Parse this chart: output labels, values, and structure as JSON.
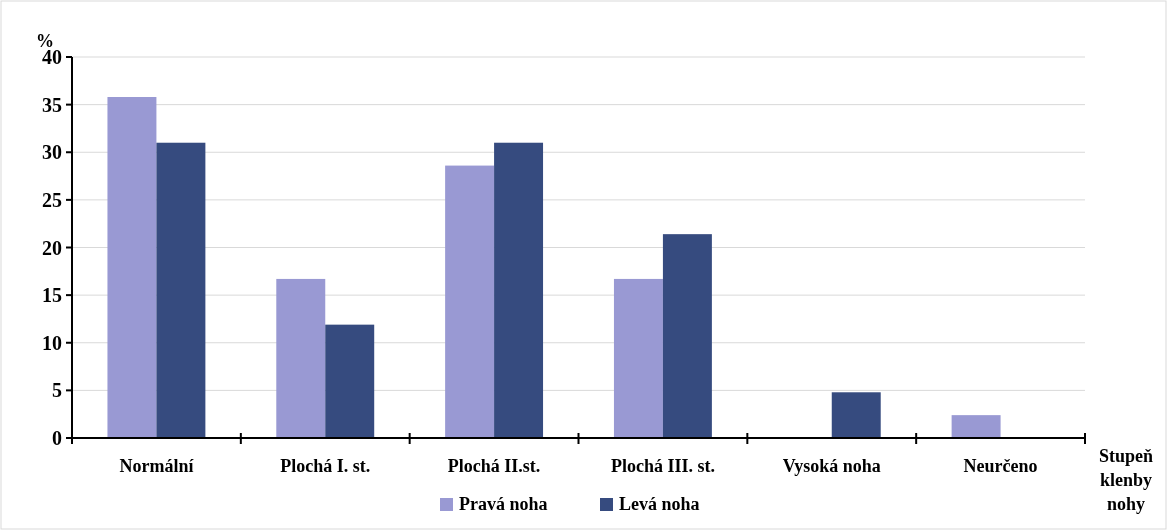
{
  "chart_data": {
    "type": "bar",
    "ylabel": "%",
    "xlabel": "Stupeň klenby nohy",
    "categories": [
      "Normální",
      "Plochá I. st.",
      "Plochá II.st.",
      "Plochá III. st.",
      "Vysoká noha",
      "Neurčeno"
    ],
    "series": [
      {
        "name": "Pravá noha",
        "color": "#9999d3",
        "values": [
          35.8,
          16.7,
          28.6,
          16.7,
          0,
          2.4
        ]
      },
      {
        "name": "Levá noha",
        "color": "#364b7f",
        "values": [
          31.0,
          11.9,
          31.0,
          21.4,
          4.8,
          0
        ]
      }
    ],
    "ylim": [
      0,
      40
    ],
    "yticks": [
      0,
      5,
      10,
      15,
      20,
      25,
      30,
      35,
      40
    ],
    "grid": "y",
    "legend": "bottom"
  }
}
